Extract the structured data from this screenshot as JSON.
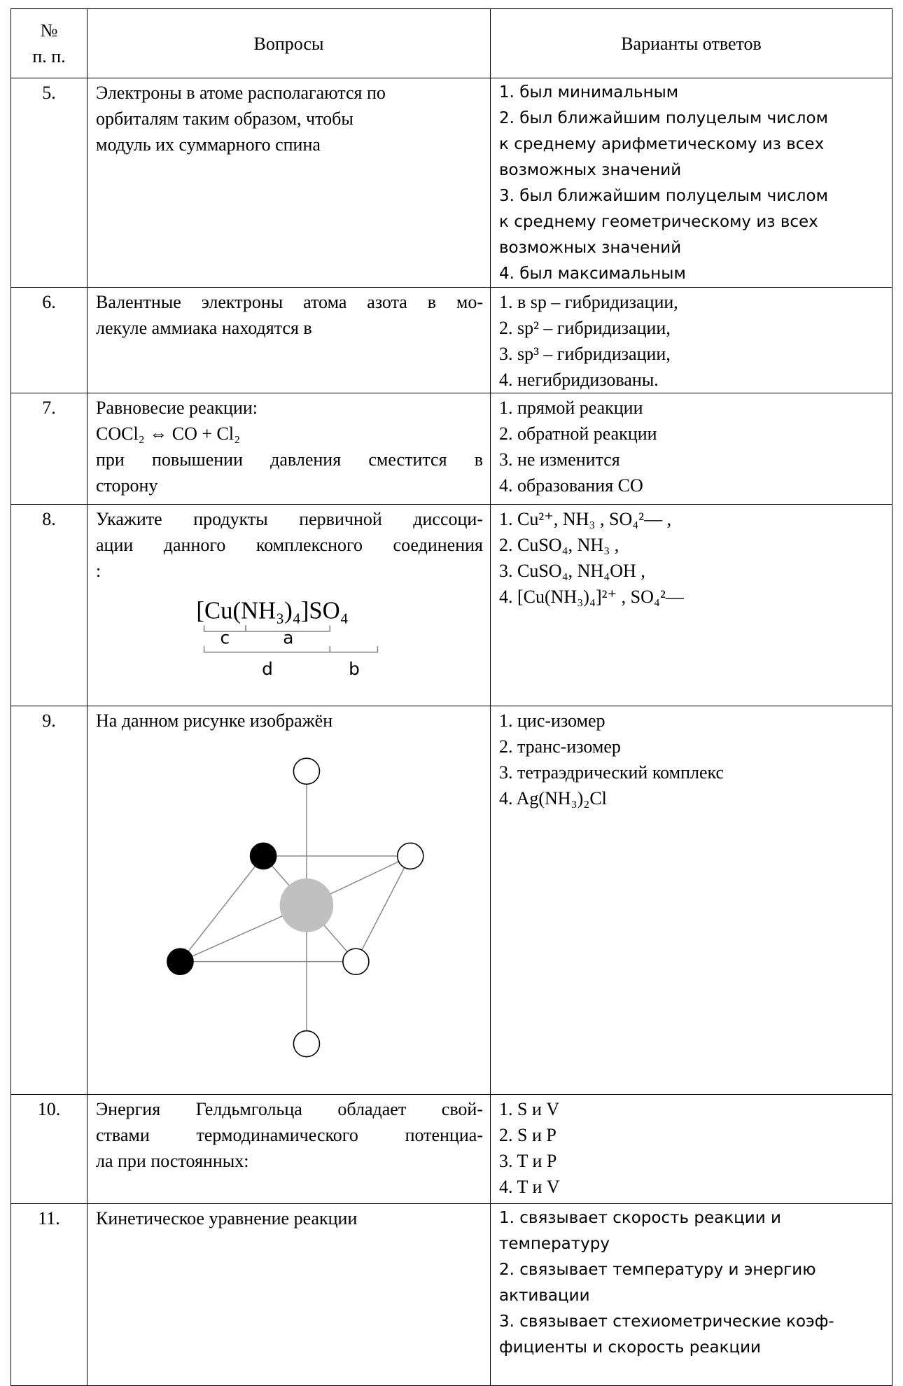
{
  "header": {
    "number": [
      "№",
      "п. п."
    ],
    "question": "Вопросы",
    "answers": "Варианты ответов"
  },
  "rows": [
    {
      "number": "5.",
      "question": [
        "Электроны в атоме располагаются по",
        "орбиталям таким образом, чтобы",
        "модуль их суммарного спина"
      ],
      "answers": [
        "1. был минимальным",
        "2. был ближайшим полуцелым числом",
        "к среднему арифметическому из всех",
        "возможных значений",
        "3. был ближайшим полуцелым числом",
        "к среднему геометрическому из всех",
        "возможных значений",
        "4. был максимальным"
      ]
    },
    {
      "number": "6.",
      "question": [
        "Валентные электроны атома азота в мо-",
        "лекуле аммиака находятся в"
      ],
      "answers": [
        "1. в sp – гибридизации,",
        "2. sp² – гибридизации,",
        "3. sp³ – гибридизации,",
        "4. негибридизованы."
      ]
    },
    {
      "number": "7.",
      "question": [
        "Равновесие реакции:",
        "COCl₂ ⇔ CO + Cl₂",
        "при повышении давления сместится в",
        "сторону"
      ],
      "answers": [
        "1. прямой реакции",
        "2. обратной реакции",
        "3. не изменится",
        "4. образования CO"
      ]
    },
    {
      "number": "8.",
      "question": [
        "Укажите продукты первичной диссоци-",
        "ации данного комплексного соединения",
        ":"
      ],
      "figure": {
        "formula": "[Cu(NH₃)₄]SO₄",
        "labels": [
          "c",
          "a",
          "d",
          "b"
        ]
      },
      "answers": [
        "1. Cu²⁺, NH₃ , SO₄²— ,",
        "2. CuSO₄, NH₃ ,",
        "3. CuSO₄, NH₄OH ,",
        "4. [Cu(NH₃)₄]²⁺ , SO₄²—"
      ]
    },
    {
      "number": "9.",
      "question": [
        "На данном рисунке изображён"
      ],
      "answers": [
        "1. цис-изомер",
        "2. транс-изомер",
        "3. тетраэдрический комплекс",
        "4. Ag(NH₃)₂Cl"
      ]
    },
    {
      "number": "10.",
      "question": [
        "Энергия Гелдьмгольца обладает свой-",
        "ствами термодинамического потенциа-",
        "ла при постоянных:"
      ],
      "answers": [
        "1. S и V",
        "2. S и P",
        "3. T и P",
        "4. T и V"
      ]
    },
    {
      "number": "11.",
      "question": [
        "Кинетическое уравнение реакции"
      ],
      "answers": [
        "1. связывает скорость реакции и",
        "температуру",
        "2. связывает температуру и энергию",
        "активации",
        "3. связывает стехиометрические коэф-",
        "фициенты и скорость реакции"
      ]
    }
  ]
}
